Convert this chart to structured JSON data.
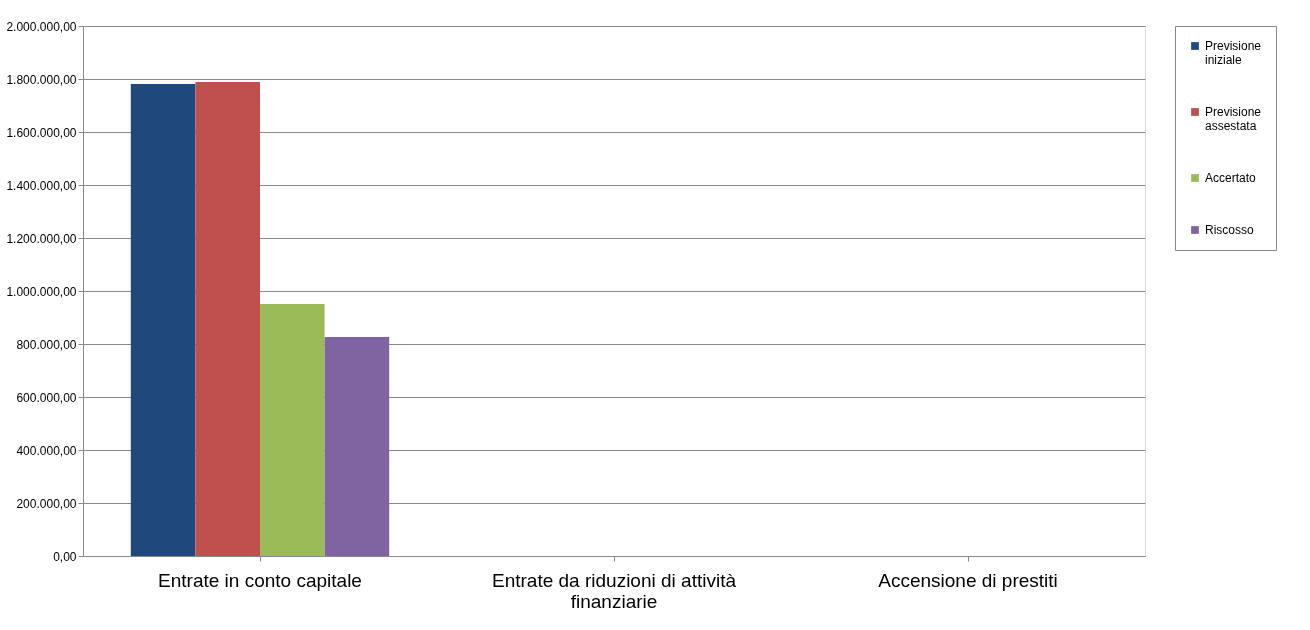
{
  "chart_data": {
    "type": "bar",
    "categories": [
      "Entrate in conto capitale",
      "Entrate da riduzioni di attività finanziarie",
      "Accensione di prestiti"
    ],
    "series": [
      {
        "name": "Previsione iniziale",
        "color": "#1f497d",
        "values": [
          1781000,
          null,
          null
        ]
      },
      {
        "name": "Previsione assestata",
        "color": "#c0504d",
        "values": [
          1789000,
          null,
          null
        ]
      },
      {
        "name": "Accertato",
        "color": "#9bbb59",
        "values": [
          951000,
          null,
          null
        ]
      },
      {
        "name": "Riscosso",
        "color": "#8064a2",
        "values": [
          826000,
          null,
          null
        ]
      }
    ],
    "ylim": [
      0,
      2000000
    ],
    "yticks": [
      {
        "value": 0,
        "label": "0,00"
      },
      {
        "value": 200000,
        "label": "200.000,00"
      },
      {
        "value": 400000,
        "label": "400.000,00"
      },
      {
        "value": 600000,
        "label": "600.000,00"
      },
      {
        "value": 800000,
        "label": "800.000,00"
      },
      {
        "value": 1000000,
        "label": "1.000.000,00"
      },
      {
        "value": 1200000,
        "label": "1.200.000,00"
      },
      {
        "value": 1400000,
        "label": "1.400.000,00"
      },
      {
        "value": 1600000,
        "label": "1.600.000,00"
      },
      {
        "value": 1800000,
        "label": "1.800.000,00"
      },
      {
        "value": 2000000,
        "label": "2.000.000,00"
      }
    ],
    "grid": "y",
    "legend": "right"
  }
}
